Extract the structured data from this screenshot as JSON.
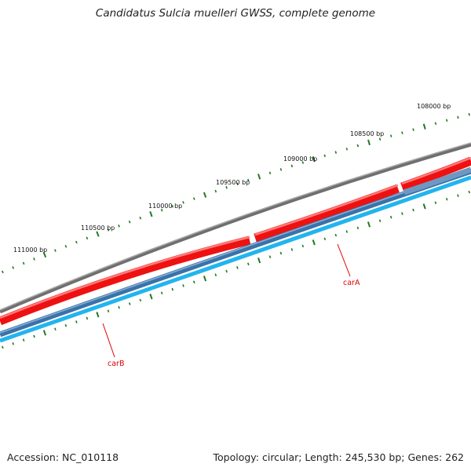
{
  "title": "Candidatus Sulcia muelleri GWSS, complete genome",
  "footer": {
    "accession": "Accession: NC_010118",
    "summary": "Topology: circular; Length: 245,530 bp; Genes: 262"
  },
  "colors": {
    "backbone": "#808080",
    "forward_gene": "#ee1111",
    "reverse_gene": "#3a72aa",
    "reverse_cds": "#22b4ee",
    "tick": "#1f7a1f",
    "label_line": "#dd0000",
    "label_text": "#dd0000"
  },
  "scale_labels": [
    "108000 bp",
    "108500 bp",
    "109000 bp",
    "109500 bp",
    "110000 bp",
    "110500 bp",
    "111000 bp"
  ],
  "gene_labels": [
    {
      "name": "carA"
    },
    {
      "name": "carB"
    }
  ]
}
